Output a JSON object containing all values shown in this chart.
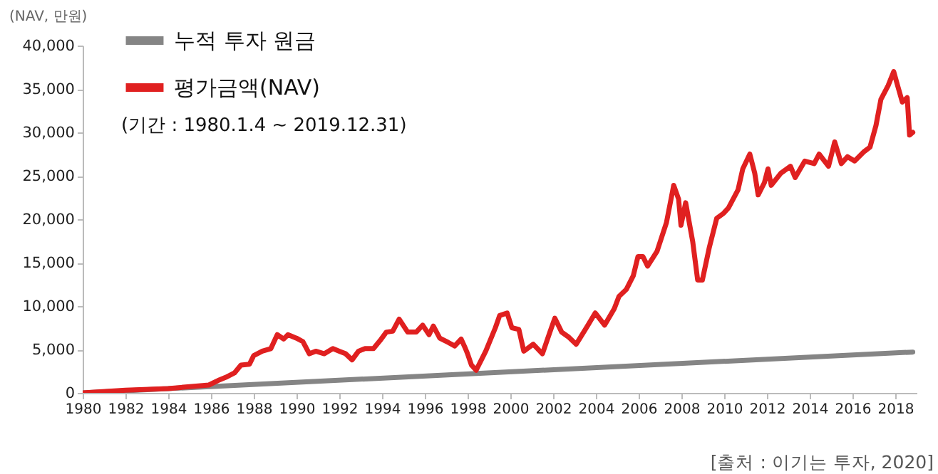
{
  "chart_data": {
    "type": "line",
    "ylabel": "(NAV, 만원)",
    "xlim": [
      1980,
      2019
    ],
    "xticks": [
      1980,
      1982,
      1984,
      1986,
      1988,
      1990,
      1992,
      1994,
      1996,
      1998,
      2000,
      2002,
      2004,
      2006,
      2008,
      2010,
      2012,
      2014,
      2016,
      2018
    ],
    "ylim": [
      0,
      40000
    ],
    "yticks": [
      0,
      {
        "value": 5000,
        "label": "5,000"
      },
      {
        "value": 10000,
        "label": "10,000"
      },
      {
        "value": 15000,
        "label": "15,000"
      },
      {
        "value": 20000,
        "label": "20,000"
      },
      {
        "value": 25000,
        "label": "25,000"
      },
      {
        "value": 30000,
        "label": "30,000"
      },
      {
        "value": 35000,
        "label": "35,000"
      },
      {
        "value": 40000,
        "label": "40,000"
      }
    ],
    "grid": false,
    "legend": "top left",
    "line_style": "solid",
    "marker": "none",
    "annotations": [
      "(기간 : 1980.1.4 ~ 2019.12.31)",
      "[출처 : 이기는 투자, 2020]"
    ],
    "series": [
      {
        "name": "누적 투자 원금",
        "color": "#858585",
        "x": [
          1980,
          2018.82
        ],
        "values": [
          0,
          4700
        ]
      },
      {
        "name": "평가금액(NAV)",
        "color": "#e02020",
        "x": [
          1980,
          1982,
          1984,
          1985.9,
          1986.4,
          1986.7,
          1987.1,
          1987.4,
          1987.8,
          1988,
          1988.4,
          1988.8,
          1989.1,
          1989.4,
          1989.6,
          1990,
          1990.3,
          1990.6,
          1990.9,
          1991.3,
          1991.7,
          1992,
          1992.3,
          1992.6,
          1992.9,
          1993.2,
          1993.6,
          1993.9,
          1994.2,
          1994.5,
          1994.8,
          1995.2,
          1995.6,
          1995.9,
          1996.2,
          1996.4,
          1996.7,
          1997.1,
          1997.4,
          1997.7,
          1997.9,
          1998,
          1998.18,
          1998.4,
          1998.85,
          1999.3,
          1999.5,
          1999.85,
          2000.07,
          2000.4,
          2000.63,
          2001.07,
          2001.5,
          2001.85,
          2002.08,
          2002.4,
          2002.74,
          2003.08,
          2003.63,
          2003.97,
          2004.41,
          2004.86,
          2005.08,
          2005.42,
          2005.75,
          2005.97,
          2006.2,
          2006.42,
          2006.86,
          2007.3,
          2007.64,
          2007.87,
          2007.98,
          2008.2,
          2008.53,
          2008.76,
          2008.98,
          2009.31,
          2009.65,
          2009.98,
          2010.2,
          2010.65,
          2010.87,
          2011.2,
          2011.43,
          2011.59,
          2011.88,
          2012.05,
          2012.2,
          2012.65,
          2013.1,
          2013.32,
          2013.77,
          2014.21,
          2014.44,
          2014.88,
          2015.17,
          2015.48,
          2015.77,
          2016.1,
          2016.55,
          2016.82,
          2017.1,
          2017.33,
          2017.67,
          2017.93,
          2018.11,
          2018.33,
          2018.56,
          2018.67,
          2018.82
        ],
        "values": [
          0,
          300,
          500,
          900,
          1500,
          1800,
          2300,
          3200,
          3300,
          4300,
          4800,
          5100,
          6700,
          6200,
          6700,
          6300,
          5900,
          4500,
          4800,
          4500,
          5100,
          4800,
          4500,
          3800,
          4800,
          5100,
          5100,
          6000,
          7000,
          7100,
          8500,
          7000,
          7000,
          7800,
          6700,
          7700,
          6300,
          5800,
          5400,
          6200,
          5100,
          4500,
          3200,
          2600,
          4800,
          7500,
          8900,
          9200,
          7500,
          7300,
          4800,
          5600,
          4500,
          7000,
          8600,
          7000,
          6400,
          5600,
          7800,
          9200,
          7800,
          9700,
          11100,
          11900,
          13500,
          15700,
          15700,
          14600,
          16300,
          19600,
          23900,
          22300,
          19300,
          21900,
          17400,
          13000,
          13000,
          16800,
          20100,
          20700,
          21300,
          23400,
          25800,
          27500,
          25300,
          22800,
          24200,
          25800,
          23900,
          25300,
          26100,
          24800,
          26700,
          26400,
          27500,
          26100,
          28900,
          26400,
          27200,
          26700,
          27800,
          28300,
          30800,
          33800,
          35400,
          37000,
          35400,
          33500,
          34000,
          29700,
          30000
        ]
      }
    ]
  }
}
